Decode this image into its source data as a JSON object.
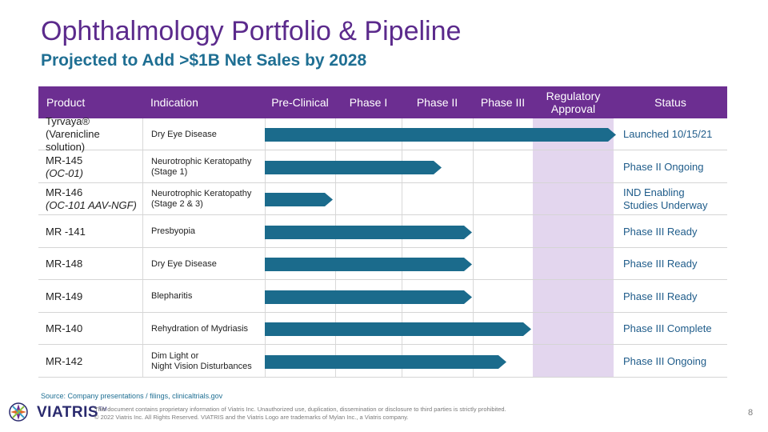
{
  "title": "Ophthalmology Portfolio & Pipeline",
  "subtitle": "Projected to Add >$1B Net Sales by 2028",
  "headers": {
    "product": "Product",
    "indication": "Indication",
    "preclinical": "Pre-Clinical",
    "phase1": "Phase I",
    "phase2": "Phase II",
    "phase3": "Phase III",
    "regulatory": "Regulatory Approval",
    "status": "Status"
  },
  "rows": [
    {
      "product": "Tyrvaya®",
      "product_sub": "(Varenicline solution)",
      "indication": "Dry Eye Disease",
      "indication_2": "",
      "progress": "Launched",
      "status": "Launched 10/15/21",
      "status_2": ""
    },
    {
      "product": "MR-145",
      "product_sub": "(OC-01)",
      "indication": "Neurotrophic Keratopathy",
      "indication_2": "(Stage 1)",
      "progress": "Phase II",
      "status": "Phase II Ongoing",
      "status_2": ""
    },
    {
      "product": "MR-146",
      "product_sub": "(OC-101 AAV-NGF)",
      "indication": "Neurotrophic Keratopathy",
      "indication_2": "(Stage 2 & 3)",
      "progress": "Pre-Clinical",
      "status": "IND Enabling",
      "status_2": "Studies Underway"
    },
    {
      "product": "MR -141",
      "product_sub": "",
      "indication": "Presbyopia",
      "indication_2": "",
      "progress": "Phase III Ready",
      "status": "Phase III Ready",
      "status_2": ""
    },
    {
      "product": "MR-148",
      "product_sub": "",
      "indication": "Dry Eye Disease",
      "indication_2": "",
      "progress": "Phase III Ready",
      "status": "Phase III Ready",
      "status_2": ""
    },
    {
      "product": "MR-149",
      "product_sub": "",
      "indication": "Blepharitis",
      "indication_2": "",
      "progress": "Phase III Ready",
      "status": "Phase III Ready",
      "status_2": ""
    },
    {
      "product": "MR-140",
      "product_sub": "",
      "indication": "Rehydration of Mydriasis",
      "indication_2": "",
      "progress": "Phase III Complete",
      "status": "Phase III Complete",
      "status_2": ""
    },
    {
      "product": "MR-142",
      "product_sub": "",
      "indication": "Dim Light or",
      "indication_2": "Night Vision Disturbances",
      "progress": "Phase III Ongoing",
      "status": "Phase III Ongoing",
      "status_2": ""
    }
  ],
  "source": "Source: Company presentations / filings, clinicaltrials.gov",
  "footer_line1": "This document contains proprietary information of Viatris Inc. Unauthorized use, duplication, dissemination or disclosure to third parties is strictly prohibited.",
  "footer_line2": "© 2022 Viatris Inc. All Rights Reserved. VIATRIS and the Viatris Logo are trademarks of Mylan Inc., a Viatris company.",
  "logo_text": "VIATRIS",
  "logo_tm": "TM",
  "page_number": "8",
  "colors": {
    "header_bg": "#6c2e91",
    "regulatory_bg": "#e3d6ee",
    "bar": "#1b6b8c",
    "title": "#5b2a8c",
    "subtitle": "#1f6f93",
    "status_text": "#1f5c8a"
  }
}
